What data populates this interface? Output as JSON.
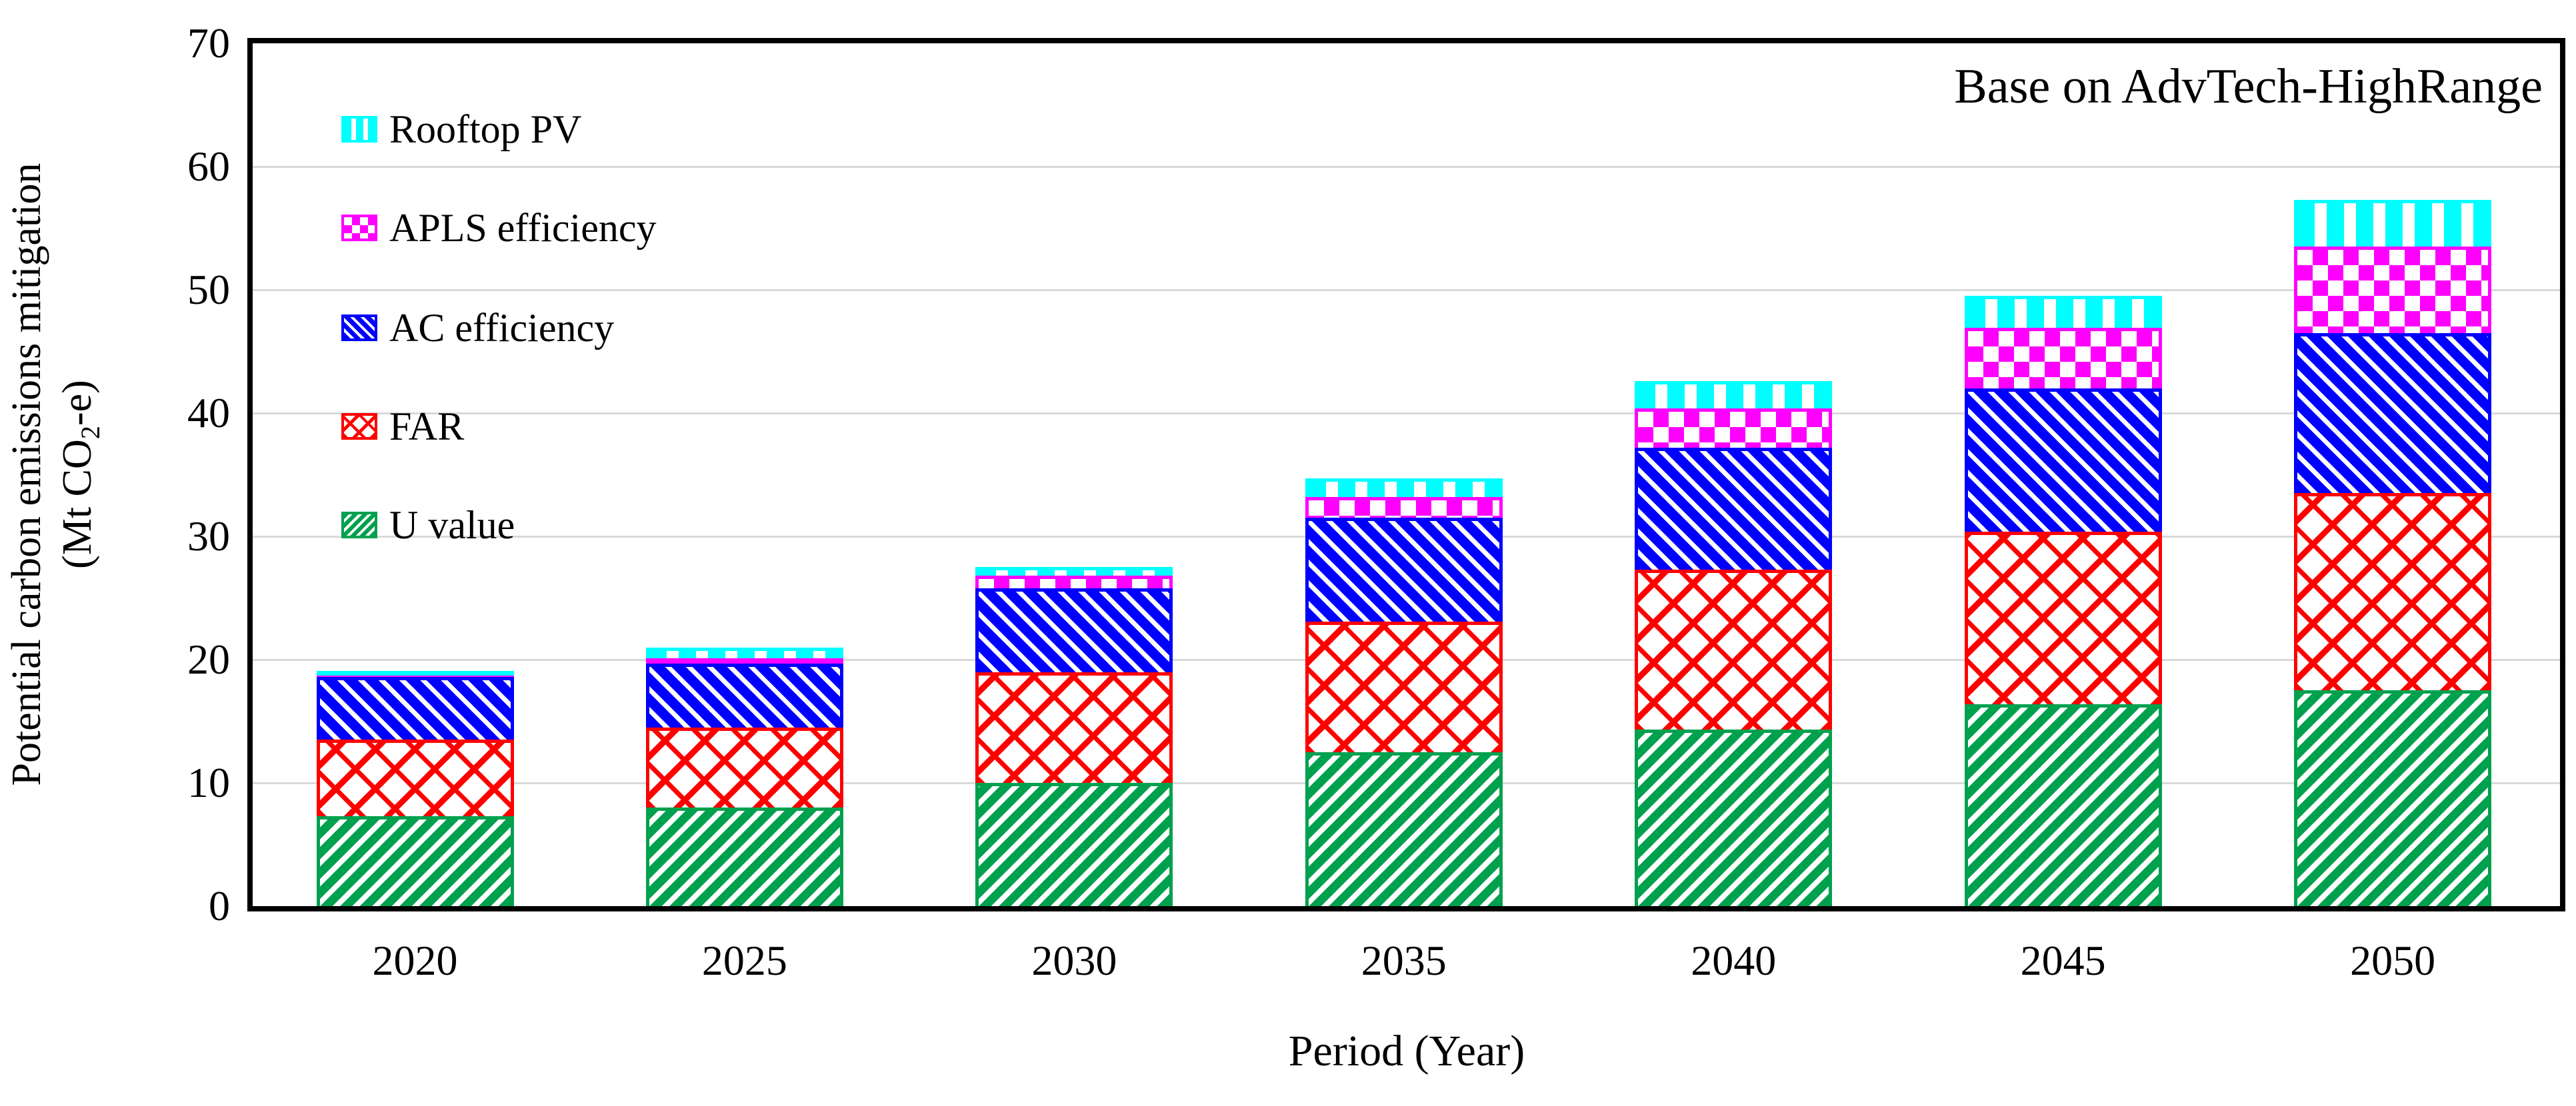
{
  "figure": {
    "annotation": "Base on AdvTech-HighRange",
    "x_axis_title": "Period (Year)",
    "y_axis_title_line1": "Potential carbon emissions mitigation",
    "y_axis_unit_prefix": "(Mt CO",
    "y_axis_unit_sub": "2",
    "y_axis_unit_suffix": "-e)"
  },
  "chart_data": {
    "type": "bar",
    "stacked": true,
    "title": "Base on AdvTech-HighRange",
    "xlabel": "Period (Year)",
    "ylabel": "Potential carbon emissions mitigation (Mt CO2-e)",
    "categories": [
      "2020",
      "2025",
      "2030",
      "2035",
      "2040",
      "2045",
      "2050"
    ],
    "ylim": [
      0,
      70
    ],
    "ytick_step": 10,
    "grid": "horizontal-light-gray",
    "gridline_color": "#d9d9d9",
    "legend_position": "upper-left-inside",
    "legend_order_top_to_bottom": [
      "Rooftop PV",
      "APLS efficiency",
      "AC efficiency",
      "FAR",
      "U value"
    ],
    "series": [
      {
        "name": "U value",
        "color": "#00a14e",
        "pattern": "diagonal-forward-stripes",
        "values": [
          7.3,
          8.0,
          10.0,
          12.5,
          14.3,
          16.4,
          17.5
        ]
      },
      {
        "name": "FAR",
        "color": "#ff0000",
        "pattern": "diagonal-lattice",
        "values": [
          6.2,
          6.5,
          9.0,
          10.6,
          13.0,
          14.0,
          16.0
        ]
      },
      {
        "name": "AC efficiency",
        "color": "#0000ff",
        "pattern": "diagonal-back-stripes",
        "values": [
          5.1,
          5.2,
          6.8,
          8.4,
          9.9,
          11.6,
          13.0
        ]
      },
      {
        "name": "APLS efficiency",
        "color": "#ff00ff",
        "pattern": "checkerboard",
        "values": [
          0.1,
          0.4,
          1.0,
          1.7,
          3.2,
          4.9,
          7.0
        ]
      },
      {
        "name": "Rooftop PV",
        "color": "#00ffff",
        "pattern": "vertical-stripes",
        "values": [
          0.4,
          0.9,
          0.7,
          1.5,
          2.2,
          2.6,
          3.8
        ]
      }
    ],
    "bar_totals": [
      19.1,
      21.0,
      27.5,
      34.7,
      42.6,
      49.5,
      57.3
    ]
  }
}
